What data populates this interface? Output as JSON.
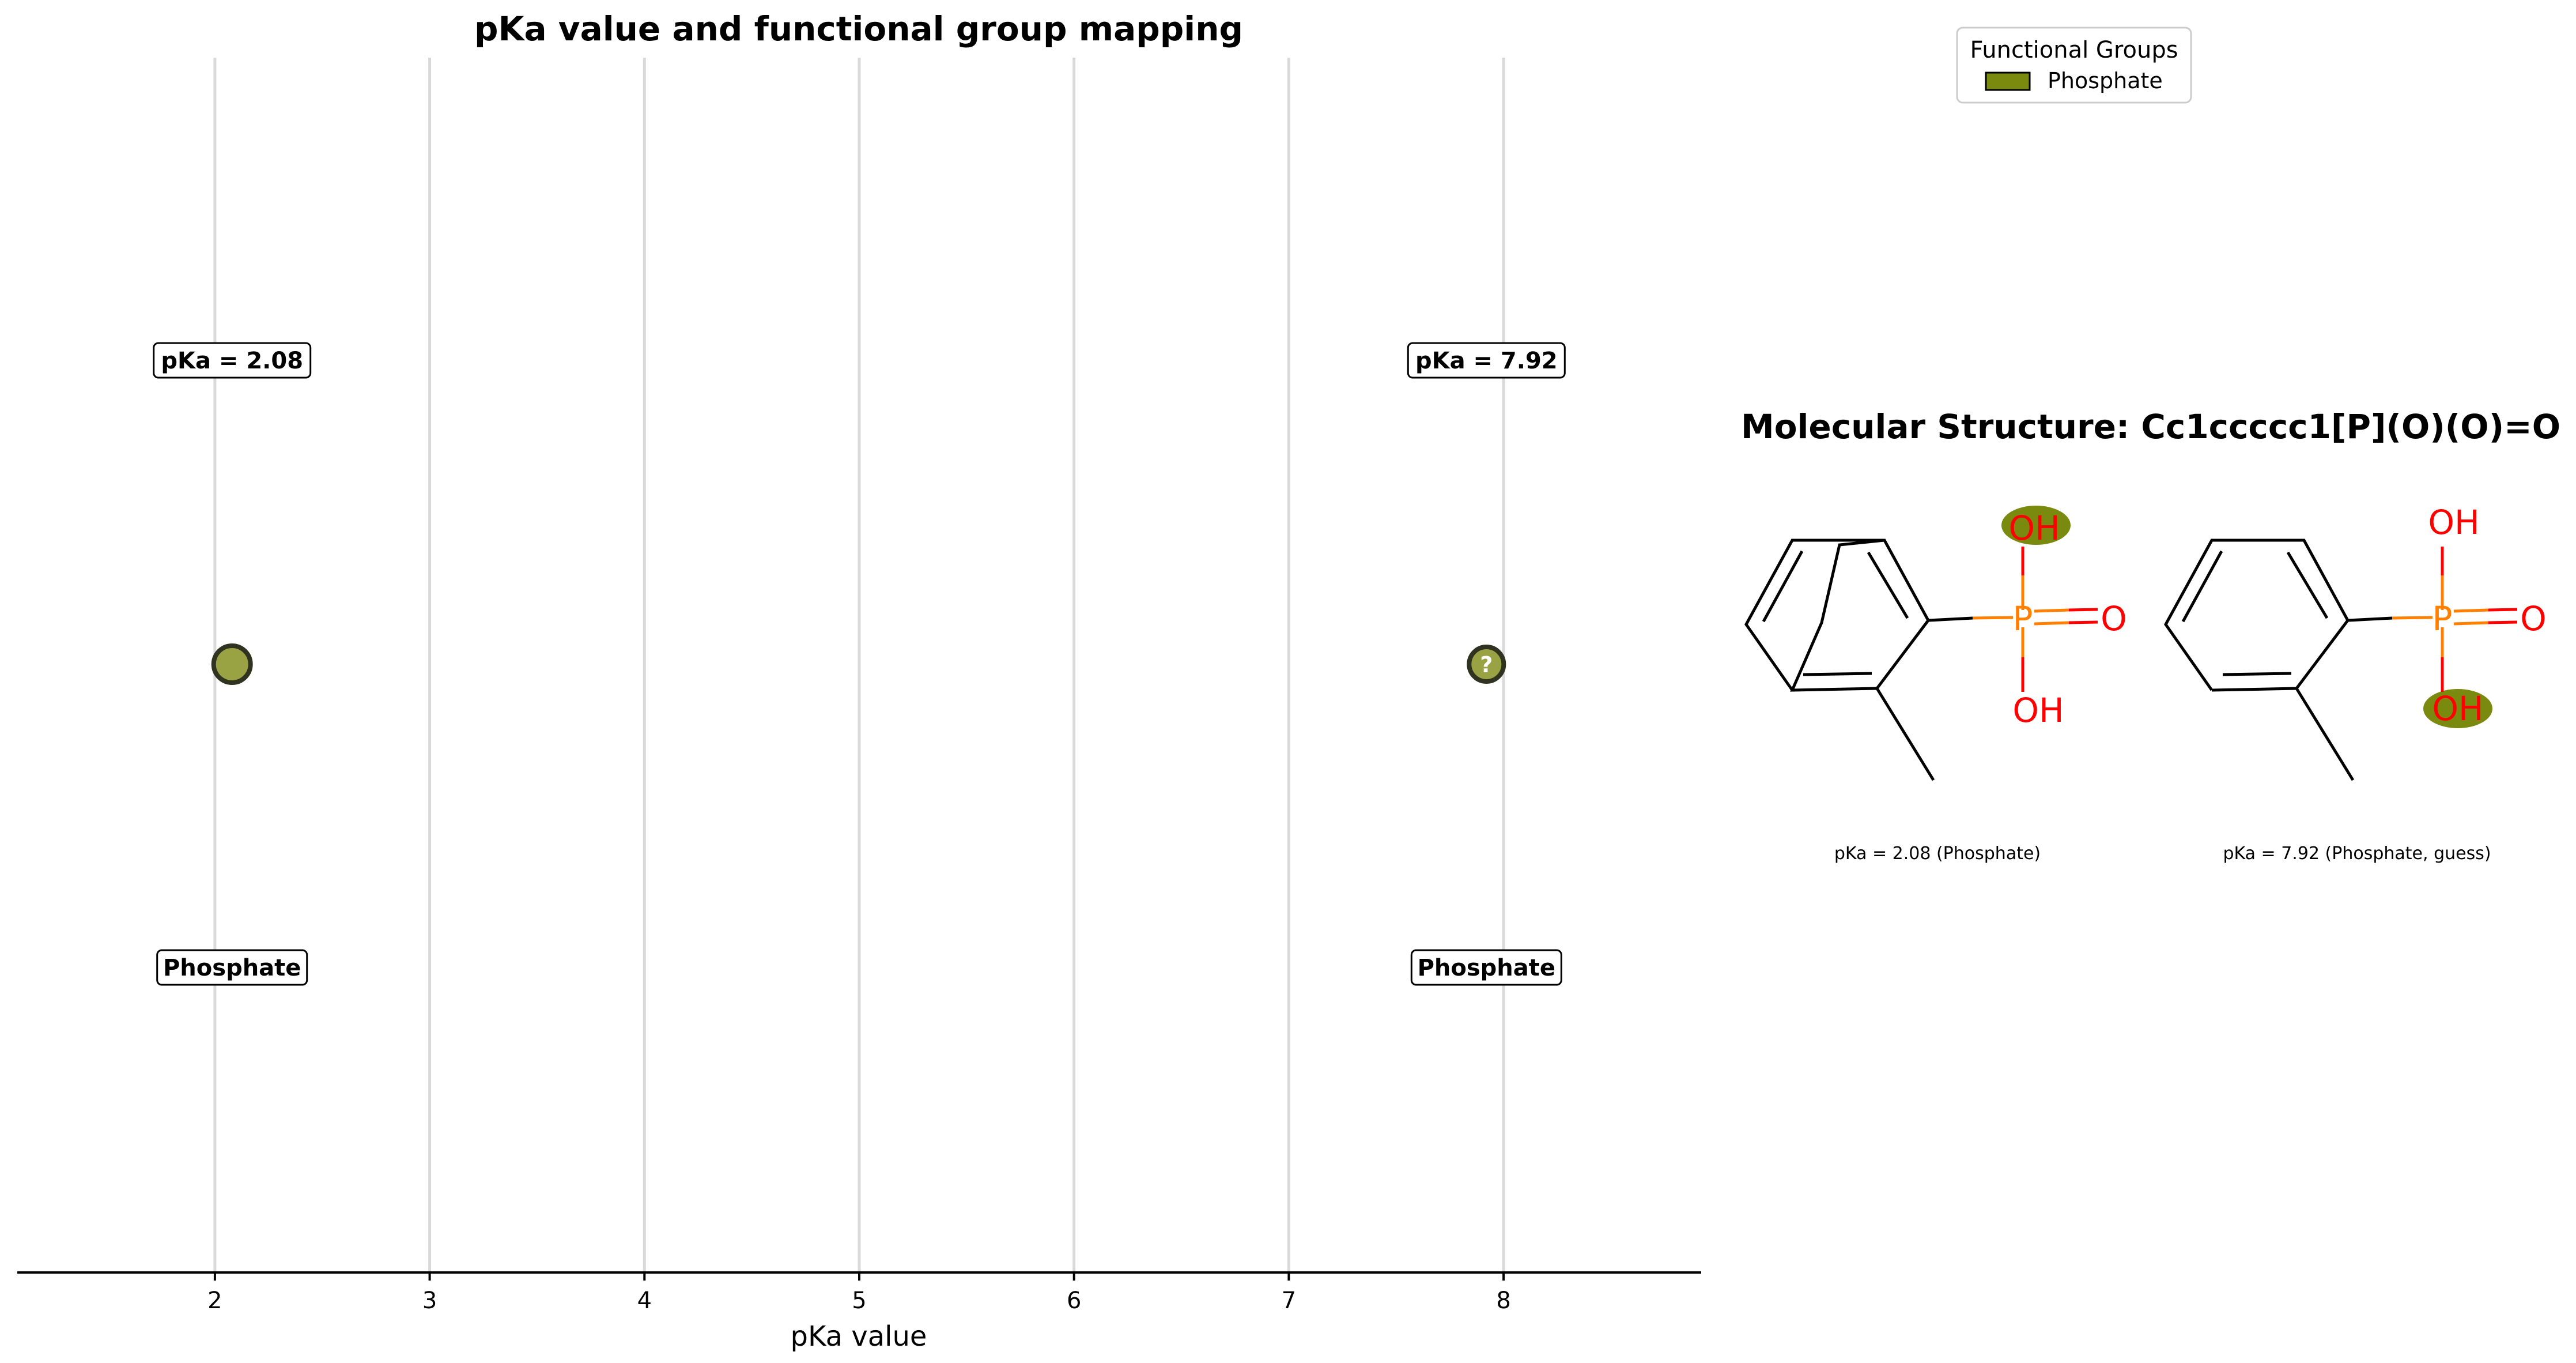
{
  "chart_data": [
    {
      "type": "scatter",
      "title": "pKa value and functional group mapping",
      "xlabel": "pKa value",
      "ylabel": "",
      "xlim": [
        1.08,
        8.92
      ],
      "x_ticks": [
        2,
        3,
        4,
        5,
        6,
        7,
        8
      ],
      "x_tick_labels": [
        "2",
        "3",
        "4",
        "5",
        "6",
        "7",
        "8"
      ],
      "grid": "vertical",
      "y_axis_visible": false,
      "points": [
        {
          "x": 2.08,
          "value_label": "pKa = 2.08",
          "group_label": "Phosphate",
          "color": "#99a344",
          "marker_text": ""
        },
        {
          "x": 7.92,
          "value_label": "pKa = 7.92",
          "group_label": "Phosphate",
          "color": "#99a344",
          "marker_text": "?"
        }
      ]
    }
  ],
  "legend": {
    "title": "Functional Groups",
    "placement": "top-right",
    "entries": [
      {
        "label": "Phosphate",
        "color": "#7a8a0f"
      }
    ]
  },
  "molecule_panel": {
    "title": "Molecular Structure: Cc1ccccc1[P](O)(O)=O",
    "highlight_color": "#7a8a0f",
    "bond_color": "#000000",
    "oxygen_color": "#ff0000",
    "phosphorus_color": "#ff8000",
    "structures": [
      {
        "caption": "pKa = 2.08 (Phosphate)",
        "labels": {
          "top": "OH",
          "right": "O",
          "bottom": "OH",
          "center": "P"
        },
        "highlighted": "top"
      },
      {
        "caption": "pKa = 7.92 (Phosphate, guess)",
        "labels": {
          "top": "OH",
          "right": "O",
          "bottom": "OH",
          "center": "P"
        },
        "highlighted": "bottom"
      }
    ]
  }
}
